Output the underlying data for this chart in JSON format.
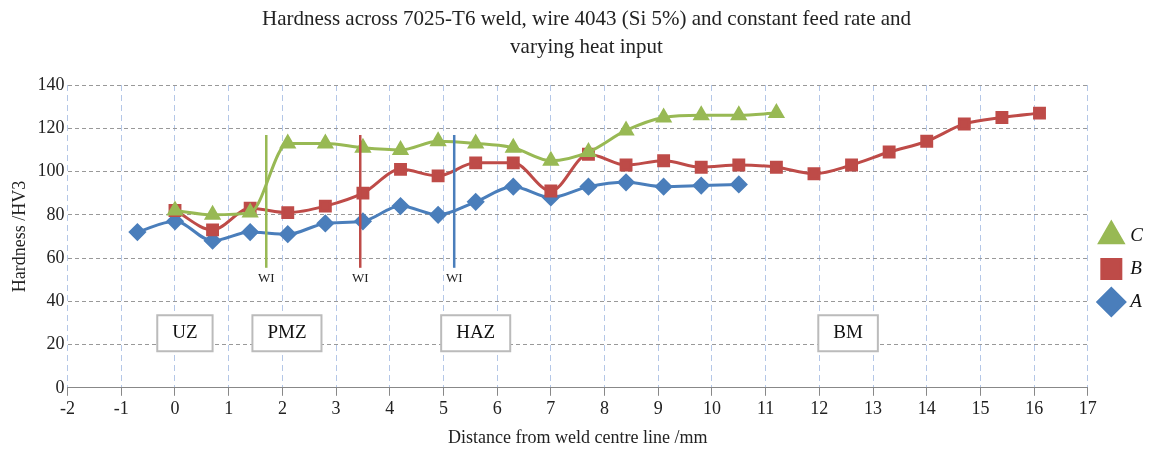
{
  "chart_data": {
    "type": "line",
    "title": "Hardness across 7025-T6 weld, wire 4043 (Si 5%) and constant feed rate and varying heat input",
    "xlabel": "Distance from weld centre line /mm",
    "ylabel": "Hardness /HV3",
    "xlim": [
      -2,
      17
    ],
    "xticks": [
      -2,
      -1,
      0,
      1,
      2,
      3,
      4,
      5,
      6,
      7,
      8,
      9,
      10,
      11,
      12,
      13,
      14,
      15,
      16,
      17
    ],
    "ylim": [
      0,
      140
    ],
    "yticks": [
      0,
      20,
      40,
      60,
      80,
      100,
      120,
      140
    ],
    "grid": true,
    "legend": "right",
    "series": [
      {
        "name": "A",
        "color": "#4a7ebb",
        "marker": "diamond",
        "x": [
          -0.7,
          0,
          0.7,
          1.4,
          2.1,
          2.8,
          3.5,
          4.2,
          4.9,
          5.6,
          6.3,
          7.0,
          7.7,
          8.4,
          9.1,
          9.8,
          10.5
        ],
        "values": [
          72,
          77,
          68,
          72,
          71,
          76,
          77,
          84,
          80,
          86,
          93,
          88,
          93,
          95,
          93,
          93.5,
          94
        ]
      },
      {
        "name": "B",
        "color": "#be4b48",
        "marker": "square",
        "x": [
          0,
          0.7,
          1.4,
          2.1,
          2.8,
          3.5,
          4.2,
          4.9,
          5.6,
          6.3,
          7.0,
          7.7,
          8.4,
          9.1,
          9.8,
          10.5,
          11.2,
          11.9,
          12.6,
          13.3,
          14.0,
          14.7,
          15.4,
          16.1
        ],
        "values": [
          82,
          73,
          83,
          81,
          84,
          90,
          101,
          98,
          104,
          104,
          91,
          108,
          103,
          105,
          102,
          103,
          102,
          99,
          103,
          109,
          114,
          122,
          125,
          127
        ]
      },
      {
        "name": "C",
        "color": "#98b954",
        "marker": "triangle",
        "x": [
          0,
          0.7,
          1.4,
          2.1,
          2.8,
          3.5,
          4.2,
          4.9,
          5.6,
          6.3,
          7.0,
          7.7,
          8.4,
          9.1,
          9.8,
          10.5,
          11.2
        ],
        "values": [
          82,
          80,
          81,
          113,
          113,
          111,
          110,
          114,
          113,
          111,
          105,
          109,
          119,
          125,
          126,
          126,
          127
        ]
      }
    ],
    "ref_lines": [
      {
        "axis": "x",
        "value": 1.7,
        "label": "WI",
        "color": "#98b954"
      },
      {
        "axis": "x",
        "value": 3.45,
        "label": "WI",
        "color": "#be4b48"
      },
      {
        "axis": "x",
        "value": 5.2,
        "label": "WI",
        "color": "#4a7ebb"
      }
    ],
    "annotations": [
      "UZ",
      "PMZ",
      "HAZ",
      "BM"
    ]
  }
}
